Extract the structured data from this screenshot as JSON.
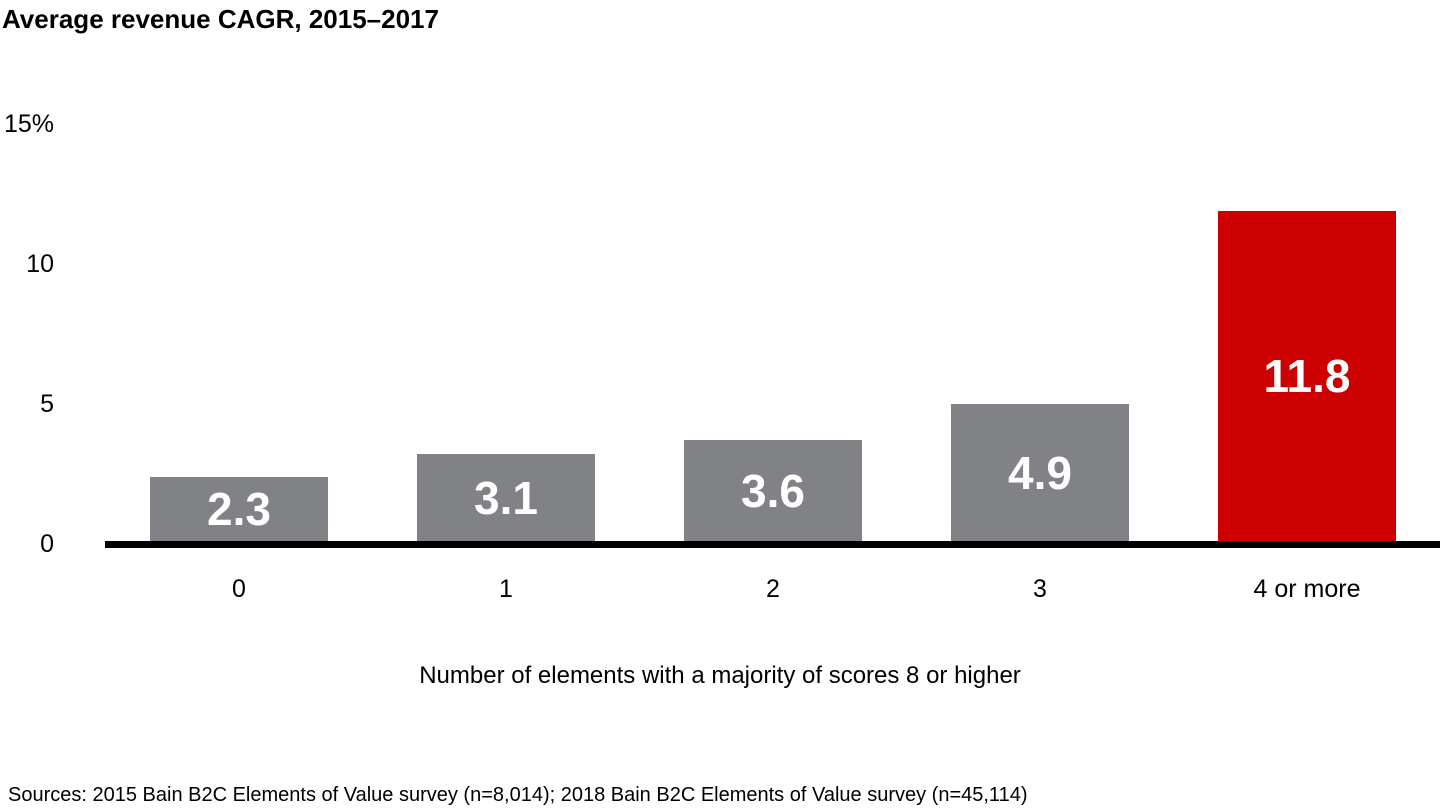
{
  "page": {
    "background": "#FFFFFF"
  },
  "chart_data": {
    "type": "bar",
    "title": "Average revenue CAGR, 2015–2017",
    "categories": [
      "0",
      "1",
      "2",
      "3",
      "4 or more"
    ],
    "values": [
      2.3,
      3.1,
      3.6,
      4.9,
      11.8
    ],
    "value_labels": [
      "2.3",
      "3.1",
      "3.6",
      "4.9",
      "11.8"
    ],
    "bar_color_keys": [
      "default",
      "default",
      "default",
      "default",
      "highlight"
    ],
    "xlabel": "Number of elements with a majority of scores 8 or higher",
    "y_axis": {
      "min": 0,
      "max": 15,
      "unit": "%",
      "ticks": [
        {
          "label": "15%",
          "value": 15
        },
        {
          "label": "10",
          "value": 10
        },
        {
          "label": "5",
          "value": 5
        },
        {
          "label": "0",
          "value": 0
        }
      ]
    },
    "grid": false,
    "legend": "none",
    "highlighted_category": "4 or more"
  },
  "colors": {
    "bar_default": "#818286",
    "bar_highlight": "#CC0000",
    "axis": "#000000",
    "bar_value_text": "#FFFFFF",
    "text": "#000000"
  },
  "footer": {
    "sources": "Sources: 2015 Bain B2C Elements of Value survey (n=8,014); 2018 Bain B2C Elements of Value survey (n=45,114)"
  }
}
